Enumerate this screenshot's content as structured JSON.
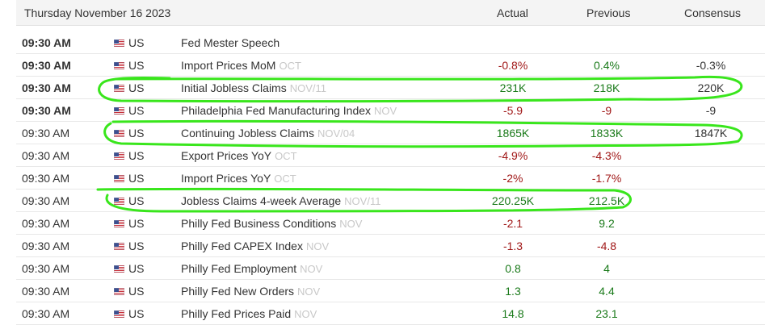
{
  "header": {
    "date": "Thursday November 16 2023",
    "col_actual": "Actual",
    "col_previous": "Previous",
    "col_consensus": "Consensus"
  },
  "rows": [
    {
      "time": "09:30 AM",
      "bold": true,
      "country": "US",
      "event": "Fed Mester Speech",
      "ref": "",
      "actual": "",
      "actual_color": "",
      "previous": "",
      "previous_color": "",
      "consensus": "",
      "consensus_color": ""
    },
    {
      "time": "09:30 AM",
      "bold": true,
      "country": "US",
      "event": "Import Prices MoM",
      "ref": "OCT",
      "actual": "-0.8%",
      "actual_color": "red",
      "previous": "0.4%",
      "previous_color": "green",
      "consensus": "-0.3%",
      "consensus_color": "black"
    },
    {
      "time": "09:30 AM",
      "bold": true,
      "country": "US",
      "event": "Initial Jobless Claims",
      "ref": "NOV/11",
      "actual": "231K",
      "actual_color": "green",
      "previous": "218K",
      "previous_color": "green",
      "consensus": "220K",
      "consensus_color": "black"
    },
    {
      "time": "09:30 AM",
      "bold": true,
      "country": "US",
      "event": "Philadelphia Fed Manufacturing Index",
      "ref": "NOV",
      "actual": "-5.9",
      "actual_color": "red",
      "previous": "-9",
      "previous_color": "red",
      "consensus": "-9",
      "consensus_color": "black"
    },
    {
      "time": "09:30 AM",
      "bold": false,
      "country": "US",
      "event": "Continuing Jobless Claims",
      "ref": "NOV/04",
      "actual": "1865K",
      "actual_color": "green",
      "previous": "1833K",
      "previous_color": "green",
      "consensus": "1847K",
      "consensus_color": "black"
    },
    {
      "time": "09:30 AM",
      "bold": false,
      "country": "US",
      "event": "Export Prices YoY",
      "ref": "OCT",
      "actual": "-4.9%",
      "actual_color": "red",
      "previous": "-4.3%",
      "previous_color": "red",
      "consensus": "",
      "consensus_color": ""
    },
    {
      "time": "09:30 AM",
      "bold": false,
      "country": "US",
      "event": "Import Prices YoY",
      "ref": "OCT",
      "actual": "-2%",
      "actual_color": "red",
      "previous": "-1.7%",
      "previous_color": "red",
      "consensus": "",
      "consensus_color": ""
    },
    {
      "time": "09:30 AM",
      "bold": false,
      "country": "US",
      "event": "Jobless Claims 4-week Average",
      "ref": "NOV/11",
      "actual": "220.25K",
      "actual_color": "green",
      "previous": "212.5K",
      "previous_color": "green",
      "consensus": "",
      "consensus_color": ""
    },
    {
      "time": "09:30 AM",
      "bold": false,
      "country": "US",
      "event": "Philly Fed Business Conditions",
      "ref": "NOV",
      "actual": "-2.1",
      "actual_color": "red",
      "previous": "9.2",
      "previous_color": "green",
      "consensus": "",
      "consensus_color": ""
    },
    {
      "time": "09:30 AM",
      "bold": false,
      "country": "US",
      "event": "Philly Fed CAPEX Index",
      "ref": "NOV",
      "actual": "-1.3",
      "actual_color": "red",
      "previous": "-4.8",
      "previous_color": "red",
      "consensus": "",
      "consensus_color": ""
    },
    {
      "time": "09:30 AM",
      "bold": false,
      "country": "US",
      "event": "Philly Fed Employment",
      "ref": "NOV",
      "actual": "0.8",
      "actual_color": "green",
      "previous": "4",
      "previous_color": "green",
      "consensus": "",
      "consensus_color": ""
    },
    {
      "time": "09:30 AM",
      "bold": false,
      "country": "US",
      "event": "Philly Fed New Orders",
      "ref": "NOV",
      "actual": "1.3",
      "actual_color": "green",
      "previous": "4.4",
      "previous_color": "green",
      "consensus": "",
      "consensus_color": ""
    },
    {
      "time": "09:30 AM",
      "bold": false,
      "country": "US",
      "event": "Philly Fed Prices Paid",
      "ref": "NOV",
      "actual": "14.8",
      "actual_color": "green",
      "previous": "23.1",
      "previous_color": "green",
      "consensus": "",
      "consensus_color": ""
    }
  ],
  "colors": {
    "red": "#a01717",
    "green": "#1a7a1a",
    "highlight": "#39e61c"
  },
  "icons": {
    "flag": "us-flag-icon"
  },
  "annotations": {
    "highlighted_events": [
      "Initial Jobless Claims",
      "Continuing Jobless Claims",
      "Jobless Claims 4-week Average"
    ]
  }
}
